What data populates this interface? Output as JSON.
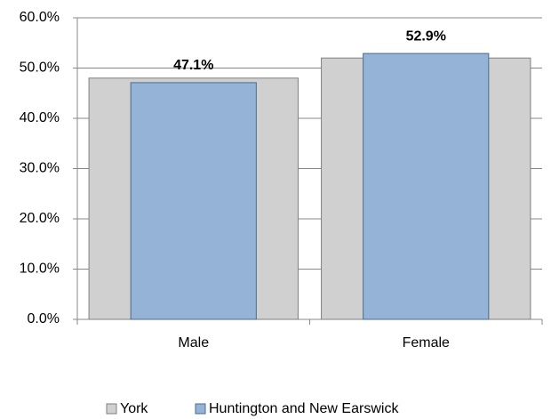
{
  "chart_data": {
    "type": "bar",
    "categories": [
      "Male",
      "Female"
    ],
    "series": [
      {
        "name": "York",
        "color": "#d0d0d0",
        "values": [
          48.0,
          52.0
        ]
      },
      {
        "name": "Huntington and New Earswick",
        "color": "#95b3d7",
        "values": [
          47.1,
          52.9
        ],
        "value_labels": [
          "47.1%",
          "52.9%"
        ]
      }
    ],
    "ylim": [
      0,
      60
    ],
    "yticks": [
      {
        "value": 0,
        "label": "0.0%"
      },
      {
        "value": 10,
        "label": "10.0%"
      },
      {
        "value": 20,
        "label": "20.0%"
      },
      {
        "value": 30,
        "label": "30.0%"
      },
      {
        "value": 40,
        "label": "40.0%"
      },
      {
        "value": 50,
        "label": "50.0%"
      },
      {
        "value": 60,
        "label": "60.0%"
      }
    ],
    "grid": true,
    "legend": "bottom"
  }
}
